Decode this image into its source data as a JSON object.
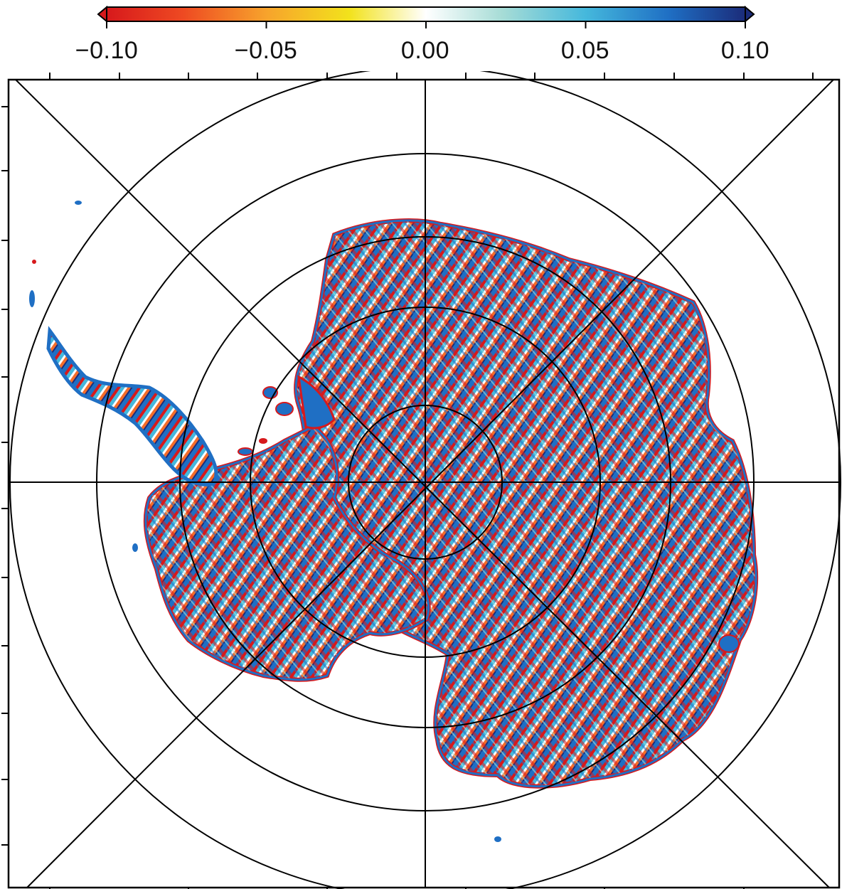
{
  "colorbar": {
    "ticks": [
      "−0.10",
      "−0.05",
      "0.00",
      "0.05",
      "0.10"
    ],
    "tick_values": [
      -0.1,
      -0.05,
      0.0,
      0.05,
      0.1
    ],
    "range": [
      -0.1,
      0.1
    ],
    "extend": "both",
    "colors": [
      "#d7191c",
      "#f46d2a",
      "#fdae2f",
      "#f2e21c",
      "#ffffff",
      "#a6dcd6",
      "#45b8dc",
      "#1f6fc4",
      "#1b2c7a"
    ]
  },
  "map": {
    "projection": "south-polar-stereographic",
    "graticule": "latitude circles and meridians",
    "region": "Antarctica"
  }
}
